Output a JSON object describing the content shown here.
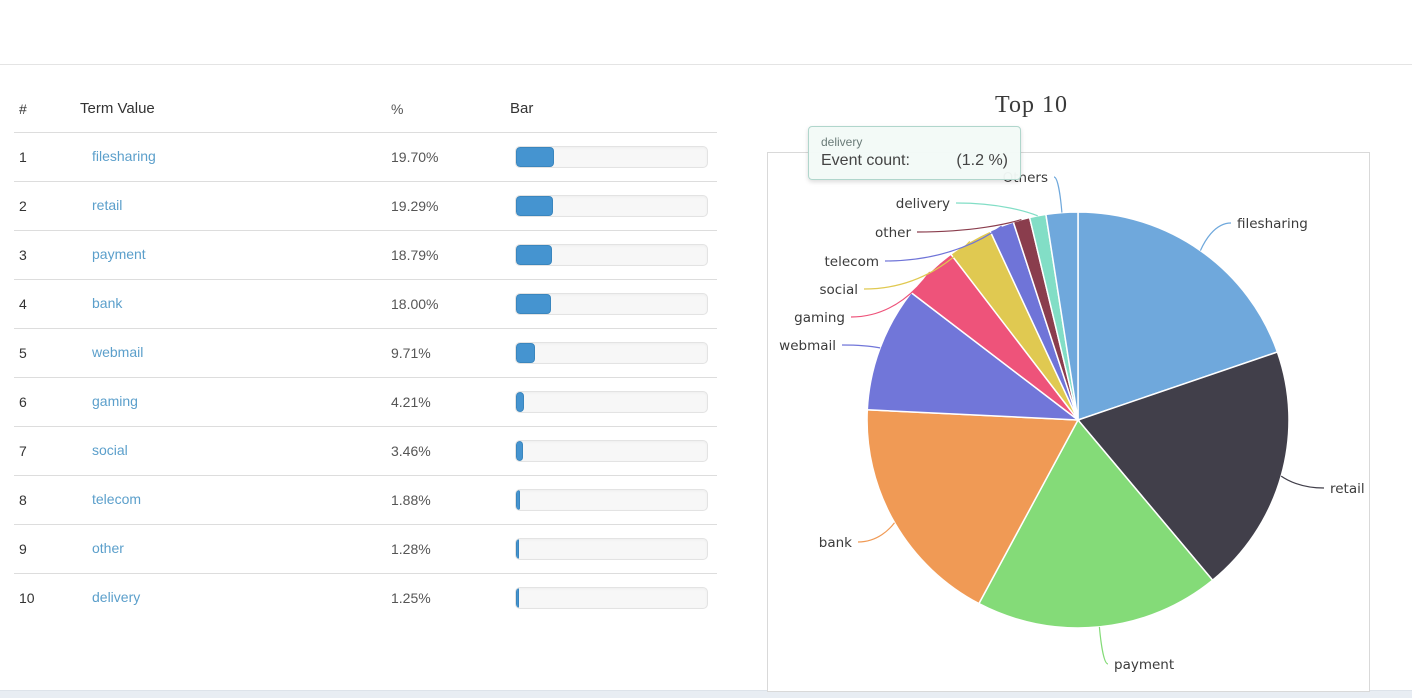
{
  "table": {
    "headers": {
      "rank": "#",
      "term": "Term Value",
      "percent": "%",
      "bar": "Bar"
    },
    "rows": [
      {
        "rank": "1",
        "term": "filesharing",
        "percent": "19.70%",
        "value": 19.7
      },
      {
        "rank": "2",
        "term": "retail",
        "percent": "19.29%",
        "value": 19.29
      },
      {
        "rank": "3",
        "term": "payment",
        "percent": "18.79%",
        "value": 18.79
      },
      {
        "rank": "4",
        "term": "bank",
        "percent": "18.00%",
        "value": 18.0
      },
      {
        "rank": "5",
        "term": "webmail",
        "percent": "9.71%",
        "value": 9.71
      },
      {
        "rank": "6",
        "term": "gaming",
        "percent": "4.21%",
        "value": 4.21
      },
      {
        "rank": "7",
        "term": "social",
        "percent": "3.46%",
        "value": 3.46
      },
      {
        "rank": "8",
        "term": "telecom",
        "percent": "1.88%",
        "value": 1.88
      },
      {
        "rank": "9",
        "term": "other",
        "percent": "1.28%",
        "value": 1.28
      },
      {
        "rank": "10",
        "term": "delivery",
        "percent": "1.25%",
        "value": 1.25
      }
    ],
    "bar_color": "#4594d0",
    "link_color": "#5b9fcb"
  },
  "chart": {
    "title": "Top 10",
    "tooltip": {
      "term": "delivery",
      "label": "Event count:",
      "percent": "(1.2 %)"
    }
  },
  "chart_data": {
    "type": "pie",
    "title": "Top 10",
    "direction": "clockwise",
    "start_angle_deg": 0,
    "legend_position": "outside-labels",
    "slices": [
      {
        "label": "filesharing",
        "value": 19.7,
        "color": "#6fa8dc"
      },
      {
        "label": "retail",
        "value": 19.29,
        "color": "#413f4a"
      },
      {
        "label": "payment",
        "value": 18.79,
        "color": "#84db78"
      },
      {
        "label": "bank",
        "value": 18.0,
        "color": "#f09a55"
      },
      {
        "label": "webmail",
        "value": 9.71,
        "color": "#7176d9"
      },
      {
        "label": "gaming",
        "value": 4.21,
        "color": "#ee537a"
      },
      {
        "label": "social",
        "value": 3.46,
        "color": "#e0c951"
      },
      {
        "label": "telecom",
        "value": 1.88,
        "color": "#6f74d8"
      },
      {
        "label": "other",
        "value": 1.28,
        "color": "#8a3d4d"
      },
      {
        "label": "delivery",
        "value": 1.25,
        "color": "#82dec6"
      },
      {
        "label": "Others",
        "value": 2.43,
        "color": "#6fa8dc"
      }
    ]
  }
}
